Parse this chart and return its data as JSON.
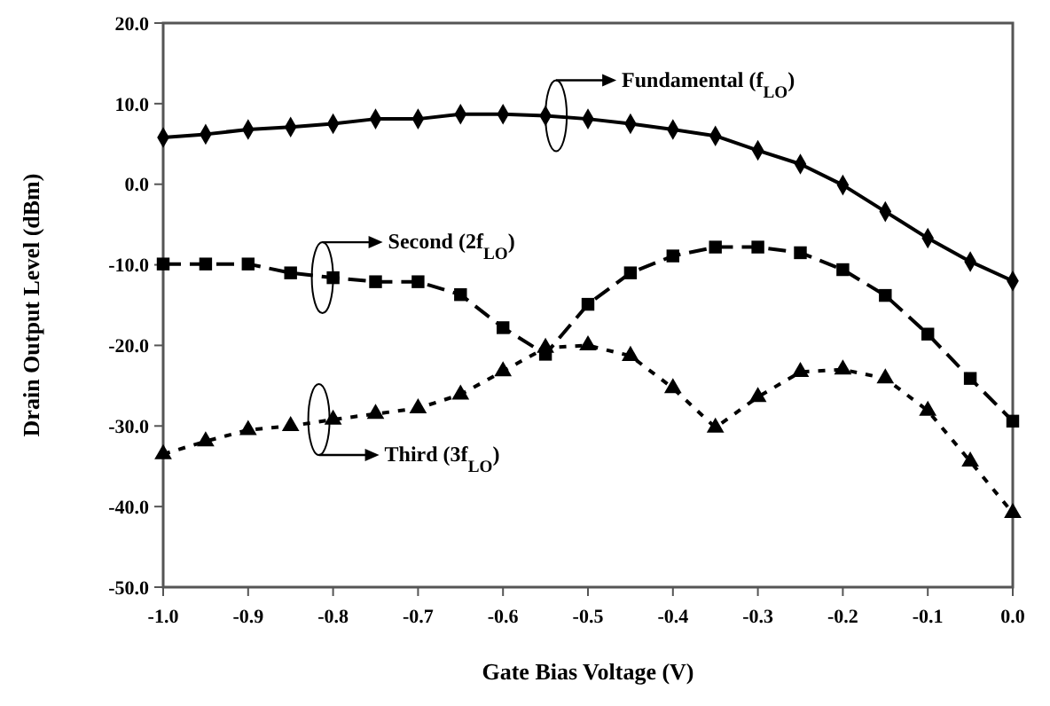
{
  "chart_data": {
    "type": "line",
    "xlabel": "Gate Bias Voltage (V)",
    "ylabel": "Drain Output Level (dBm)",
    "x": [
      -1,
      -0.95,
      -0.9,
      -0.85,
      -0.8,
      -0.75,
      -0.7,
      -0.65,
      -0.6,
      -0.55,
      -0.5,
      -0.45,
      -0.4,
      -0.35,
      -0.3,
      -0.25,
      -0.2,
      -0.15,
      -0.1,
      -0.05,
      0
    ],
    "series": [
      {
        "color": "#000000",
        "marker": "diamond",
        "line_style": "solid",
        "values": [
          5.8,
          6.2,
          6.8,
          7.1,
          7.5,
          8.1,
          8.1,
          8.7,
          8.7,
          8.5,
          8.1,
          7.5,
          6.8,
          6.0,
          4.2,
          2.5,
          -0.1,
          -3.4,
          -6.7,
          -9.6,
          -12.0
        ]
      },
      {
        "color": "#000000",
        "marker": "square",
        "line_style": "dashed",
        "values": [
          -9.9,
          -9.9,
          -9.9,
          -11.0,
          -11.6,
          -12.1,
          -12.1,
          -13.7,
          -17.8,
          -21.1,
          -14.9,
          -11.0,
          -8.9,
          -7.8,
          -7.8,
          -8.5,
          -10.6,
          -13.8,
          -18.6,
          -24.1,
          -29.4
        ]
      },
      {
        "color": "#000000",
        "marker": "triangle",
        "line_style": "dotted",
        "values": [
          -33.5,
          -31.9,
          -30.5,
          -30.0,
          -29.2,
          -28.5,
          -27.8,
          -26.1,
          -23.2,
          -20.3,
          -20.0,
          -21.3,
          -25.3,
          -30.2,
          -26.4,
          -23.3,
          -23.0,
          -24.1,
          -28.1,
          -34.4,
          -40.8
        ]
      }
    ],
    "annotations": [
      "Fundamental (f$_{LO}$)",
      "Second (2f$_{LO}$)",
      "Third (3f$_{LO}$)"
    ],
    "xlim": [
      -1,
      0
    ],
    "xticks": [
      {
        "value": -1,
        "label": "-1.0"
      },
      -0.9,
      -0.8,
      -0.7,
      -0.6,
      -0.5,
      -0.4,
      -0.3,
      -0.2,
      -0.1,
      {
        "value": 0,
        "label": "0.0"
      }
    ],
    "ylim": [
      -50,
      20
    ],
    "yticks": [
      {
        "value": -50,
        "label": "-50.0"
      },
      {
        "value": -40,
        "label": "-40.0"
      },
      {
        "value": -30,
        "label": "-30.0"
      },
      {
        "value": -20,
        "label": "-20.0"
      },
      {
        "value": -10,
        "label": "-10.0"
      },
      {
        "value": 0,
        "label": "0.0"
      },
      {
        "value": 10,
        "label": "10.0"
      },
      {
        "value": 20,
        "label": "20.0"
      }
    ],
    "grid": false
  }
}
